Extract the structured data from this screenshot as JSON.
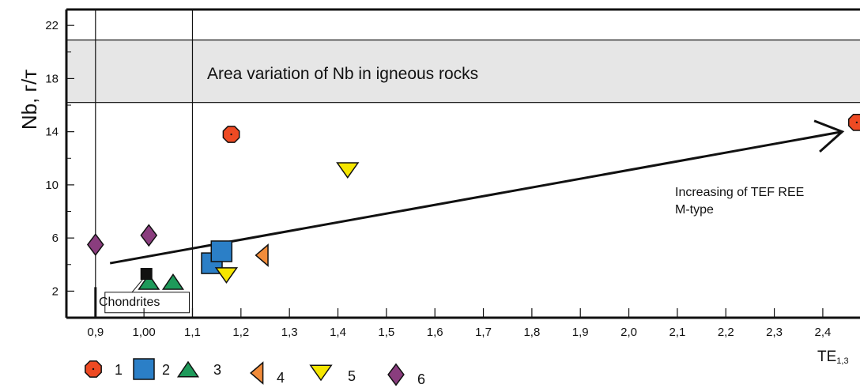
{
  "chart_data": {
    "type": "scatter",
    "title": "",
    "xlabel": "TE",
    "xlabel_sub": "1,3",
    "ylabel": "Nb, г/т",
    "xlim": [
      0.84,
      2.48
    ],
    "ylim": [
      0,
      23.2
    ],
    "x_ticks": [
      {
        "value": 0.9,
        "label": "0,9"
      },
      {
        "value": 1.0,
        "label": "1,00"
      },
      {
        "value": 1.1,
        "label": "1,1"
      },
      {
        "value": 1.2,
        "label": "1,2"
      },
      {
        "value": 1.3,
        "label": "1,3"
      },
      {
        "value": 1.4,
        "label": "1,4"
      },
      {
        "value": 1.5,
        "label": "1,5"
      },
      {
        "value": 1.6,
        "label": "1,6"
      },
      {
        "value": 1.7,
        "label": "1,7"
      },
      {
        "value": 1.8,
        "label": "1,8"
      },
      {
        "value": 1.9,
        "label": "1,9"
      },
      {
        "value": 2.0,
        "label": "2,0"
      },
      {
        "value": 2.1,
        "label": "2,1"
      },
      {
        "value": 2.2,
        "label": "2,2"
      },
      {
        "value": 2.3,
        "label": "2,3"
      },
      {
        "value": 2.4,
        "label": "2,4"
      }
    ],
    "y_ticks": [
      {
        "value": 2,
        "label": "2"
      },
      {
        "value": 6,
        "label": "6"
      },
      {
        "value": 10,
        "label": "10"
      },
      {
        "value": 14,
        "label": "14"
      },
      {
        "value": 18,
        "label": "18"
      },
      {
        "value": 22,
        "label": "22"
      }
    ],
    "grid": false,
    "band": {
      "y_from": 16.2,
      "y_to": 20.9,
      "color": "#e6e6e6",
      "label": "Area variation of Nb in igneous rocks"
    },
    "vertical_lines": [
      0.9,
      1.1
    ],
    "chondrites": {
      "label": "Chondrites",
      "x_range": [
        0.9,
        1.1
      ]
    },
    "trend_arrow": {
      "from": [
        0.93,
        4.1
      ],
      "to": [
        2.44,
        14.0
      ],
      "label_lines": [
        "Increasing of TEF REE",
        "M-type"
      ]
    },
    "series": [
      {
        "name": "1",
        "marker": "octagon",
        "color": "#ee4a23",
        "points": [
          {
            "x": 1.18,
            "y": 13.8
          },
          {
            "x": 2.47,
            "y": 14.7
          }
        ]
      },
      {
        "name": "2",
        "marker": "square",
        "color": "#2b7fc7",
        "points": [
          {
            "x": 1.14,
            "y": 4.1
          },
          {
            "x": 1.16,
            "y": 5.0
          }
        ]
      },
      {
        "name": "3",
        "marker": "triangle-up",
        "color": "#1e9a5a",
        "points": [
          {
            "x": 1.01,
            "y": 2.6
          },
          {
            "x": 1.06,
            "y": 2.6
          }
        ]
      },
      {
        "name": "4",
        "marker": "triangle-left",
        "color": "#f28c3a",
        "points": [
          {
            "x": 1.245,
            "y": 4.7
          }
        ]
      },
      {
        "name": "5",
        "marker": "triangle-down",
        "color": "#f5e600",
        "points": [
          {
            "x": 1.17,
            "y": 3.3
          },
          {
            "x": 1.42,
            "y": 11.2
          }
        ]
      },
      {
        "name": "6",
        "marker": "diamond",
        "color": "#8a3d7e",
        "points": [
          {
            "x": 0.9,
            "y": 5.5
          },
          {
            "x": 1.01,
            "y": 6.2
          }
        ]
      },
      {
        "name": "",
        "marker": "square-small",
        "color": "#111111",
        "points": [
          {
            "x": 1.005,
            "y": 3.3
          }
        ]
      }
    ],
    "legend": {
      "placement": "bottom-left",
      "entries": [
        "1",
        "2",
        "3",
        "4",
        "5",
        "6"
      ]
    }
  }
}
